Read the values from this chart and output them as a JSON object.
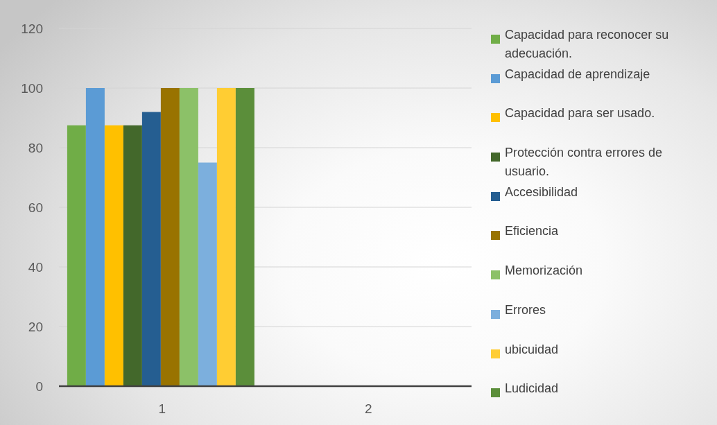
{
  "chart_data": {
    "type": "bar",
    "categories": [
      "1",
      "2"
    ],
    "series": [
      {
        "name": "Capacidad para reconocer su adecuación.",
        "color": "#70ad47",
        "values": [
          87.5,
          null
        ]
      },
      {
        "name": "Capacidad de aprendizaje",
        "color": "#5b9bd5",
        "values": [
          100,
          null
        ]
      },
      {
        "name": "Capacidad para ser usado.",
        "color": "#ffc000",
        "values": [
          87.5,
          null
        ]
      },
      {
        "name": "Protección contra errores de usuario.",
        "color": "#43682b",
        "values": [
          87.5,
          null
        ]
      },
      {
        "name": "Accesibilidad",
        "color": "#255e91",
        "values": [
          92,
          null
        ]
      },
      {
        "name": "Eficiencia",
        "color": "#997300",
        "values": [
          100,
          null
        ]
      },
      {
        "name": "Memorización",
        "color": "#8cc168",
        "values": [
          100,
          null
        ]
      },
      {
        "name": "Errores",
        "color": "#7cafdd",
        "values": [
          75,
          null
        ]
      },
      {
        "name": "ubicuidad",
        "color": "#ffcd33",
        "values": [
          100,
          null
        ]
      },
      {
        "name": "Ludicidad",
        "color": "#5b8e3a",
        "values": [
          100,
          null
        ]
      }
    ],
    "ylim": [
      0,
      120
    ],
    "yticks": [
      0,
      20,
      40,
      60,
      80,
      100,
      120
    ],
    "grid": "y",
    "legend": "right"
  }
}
